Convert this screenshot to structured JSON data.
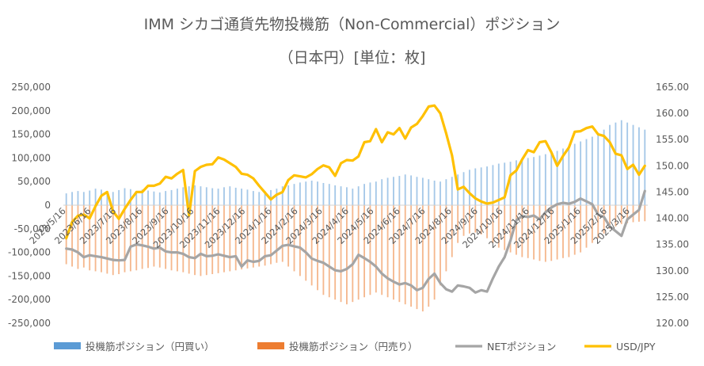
{
  "chart_data": {
    "type": "bar",
    "title": "IMM シカゴ通貨先物投機筋（Non-Commercial）ポジション",
    "subtitle": "（日本円）[単位：枚]",
    "left_axis": {
      "ylim": [
        -250000,
        250000
      ],
      "ticks": [
        "250,000",
        "200,000",
        "150,000",
        "100,000",
        "50,000",
        "0",
        "-50,000",
        "-100,000",
        "-150,000",
        "-200,000",
        "-250,000"
      ]
    },
    "right_axis": {
      "ylim": [
        120,
        165
      ],
      "ticks": [
        "165.00",
        "160.00",
        "155.00",
        "150.00",
        "145.00",
        "140.00",
        "135.00",
        "130.00",
        "125.00",
        "120.00"
      ]
    },
    "x_tick_labels": [
      "2023/5/16",
      "2023/6/16",
      "2023/7/16",
      "2023/8/16",
      "2023/9/16",
      "2023/10/16",
      "2023/11/16",
      "2023/12/16",
      "2024/1/16",
      "2024/2/16",
      "2024/3/16",
      "2024/4/16",
      "2024/5/16",
      "2024/6/16",
      "2024/7/16",
      "2024/8/16",
      "2024/9/16",
      "2024/10/16",
      "2024/11/16",
      "2024/12/16",
      "2025/1/16",
      "2025/2/16",
      "2025/3/16"
    ],
    "x_tick_positions": [
      0,
      4.3,
      8.6,
      13.1,
      17.6,
      21.9,
      26.4,
      30.7,
      35.2,
      39.7,
      43.9,
      48.4,
      52.7,
      57.2,
      61.5,
      66.0,
      70.5,
      74.8,
      79.3,
      83.6,
      88.1,
      92.6,
      96.5
    ],
    "series": [
      {
        "name": "投機筋ポジション（円買い）",
        "color": "#5B9BD5",
        "axis": "left",
        "values": [
          25000,
          28000,
          30000,
          28000,
          31000,
          35000,
          33000,
          30000,
          28000,
          32000,
          36000,
          34000,
          30000,
          33000,
          31000,
          29000,
          27000,
          30000,
          32000,
          35000,
          38000,
          40000,
          42000,
          40000,
          38000,
          36000,
          35000,
          38000,
          40000,
          37000,
          35000,
          33000,
          30000,
          28000,
          30000,
          32000,
          35000,
          40000,
          42000,
          45000,
          48000,
          50000,
          52000,
          50000,
          47000,
          45000,
          42000,
          40000,
          38000,
          35000,
          40000,
          45000,
          48000,
          50000,
          55000,
          58000,
          60000,
          62000,
          65000,
          63000,
          60000,
          58000,
          55000,
          52000,
          50000,
          55000,
          60000,
          65000,
          70000,
          75000,
          78000,
          80000,
          82000,
          85000,
          88000,
          90000,
          92000,
          95000,
          98000,
          100000,
          102000,
          105000,
          108000,
          110000,
          115000,
          120000,
          125000,
          130000,
          135000,
          140000,
          145000,
          150000,
          160000,
          170000,
          175000,
          180000,
          175000,
          170000,
          165000,
          160000
        ]
      },
      {
        "name": "投機筋ポジション（円売り）",
        "color": "#ED7D31",
        "axis": "left",
        "values": [
          -125000,
          -130000,
          -135000,
          -132000,
          -138000,
          -140000,
          -142000,
          -145000,
          -148000,
          -146000,
          -142000,
          -140000,
          -138000,
          -135000,
          -133000,
          -130000,
          -132000,
          -135000,
          -138000,
          -140000,
          -142000,
          -145000,
          -148000,
          -150000,
          -148000,
          -146000,
          -144000,
          -142000,
          -140000,
          -138000,
          -136000,
          -134000,
          -132000,
          -130000,
          -128000,
          -125000,
          -122000,
          -120000,
          -130000,
          -140000,
          -150000,
          -160000,
          -170000,
          -180000,
          -190000,
          -195000,
          -200000,
          -205000,
          -210000,
          -205000,
          -200000,
          -195000,
          -190000,
          -185000,
          -190000,
          -195000,
          -200000,
          -205000,
          -210000,
          -215000,
          -220000,
          -225000,
          -215000,
          -200000,
          -170000,
          -140000,
          -110000,
          -80000,
          -65000,
          -60000,
          -58000,
          -62000,
          -70000,
          -80000,
          -90000,
          -95000,
          -100000,
          -105000,
          -110000,
          -112000,
          -115000,
          -118000,
          -120000,
          -118000,
          -115000,
          -112000,
          -110000,
          -105000,
          -100000,
          -90000,
          -80000,
          -70000,
          -60000,
          -50000,
          -45000,
          -40000,
          -38000,
          -36000,
          -35000,
          -34000
        ]
      },
      {
        "name": "NETポジション",
        "color": "#A5A5A5",
        "axis": "left",
        "values": [
          -92000,
          -94000,
          -100000,
          -110000,
          -106000,
          -108000,
          -110000,
          -113000,
          -116000,
          -117000,
          -116000,
          -88000,
          -83000,
          -85000,
          -88000,
          -92000,
          -90000,
          -98000,
          -100000,
          -100000,
          -103000,
          -110000,
          -112000,
          -103000,
          -108000,
          -107000,
          -104000,
          -107000,
          -110000,
          -108000,
          -130000,
          -117000,
          -120000,
          -118000,
          -108000,
          -106000,
          -96000,
          -86000,
          -84000,
          -87000,
          -90000,
          -100000,
          -113000,
          -118000,
          -122000,
          -130000,
          -138000,
          -140000,
          -135000,
          -125000,
          -105000,
          -112000,
          -120000,
          -130000,
          -145000,
          -155000,
          -162000,
          -168000,
          -165000,
          -170000,
          -180000,
          -175000,
          -156000,
          -145000,
          -165000,
          -178000,
          -183000,
          -170000,
          -172000,
          -175000,
          -185000,
          -180000,
          -183000,
          -155000,
          -130000,
          -110000,
          -75000,
          -32000,
          -23000,
          -25000,
          -22000,
          -30000,
          -15000,
          -5000,
          2000,
          5000,
          3000,
          7000,
          14000,
          8000,
          2000,
          -20000,
          -25000,
          -45000,
          -55000,
          -65000,
          -30000,
          -20000,
          -10000,
          30000
        ]
      },
      {
        "name": "USD/JPY",
        "color": "#FFC000",
        "axis": "right",
        "values": [
          136.2,
          139.3,
          140.5,
          140.7,
          140.0,
          142.3,
          144.3,
          145.0,
          141.3,
          139.9,
          141.8,
          143.5,
          145.0,
          145.0,
          146.2,
          146.2,
          146.6,
          147.9,
          147.6,
          148.5,
          149.2,
          140.5,
          149.0,
          149.8,
          150.2,
          150.3,
          151.6,
          151.2,
          150.5,
          149.8,
          148.5,
          148.3,
          147.6,
          146.2,
          144.9,
          143.6,
          144.5,
          145.0,
          147.3,
          148.2,
          148.0,
          147.8,
          148.4,
          149.4,
          150.1,
          149.7,
          148.1,
          150.5,
          151.1,
          151.0,
          151.8,
          154.5,
          154.7,
          157.0,
          154.5,
          156.4,
          156.0,
          157.2,
          155.2,
          157.3,
          158.0,
          159.5,
          161.3,
          161.5,
          160.0,
          156.2,
          152.0,
          145.5,
          146.0,
          144.8,
          143.8,
          143.2,
          142.8,
          143.0,
          143.5,
          144.0,
          148.2,
          149.1,
          151.2,
          153.0,
          152.6,
          154.5,
          154.7,
          152.6,
          150.0,
          151.9,
          153.5,
          156.5,
          156.6,
          157.2,
          157.5,
          156.0,
          155.7,
          154.5,
          152.3,
          152.0,
          149.4,
          150.2,
          148.3,
          150.0
        ]
      }
    ],
    "legend_position": "bottom",
    "grid": false
  }
}
